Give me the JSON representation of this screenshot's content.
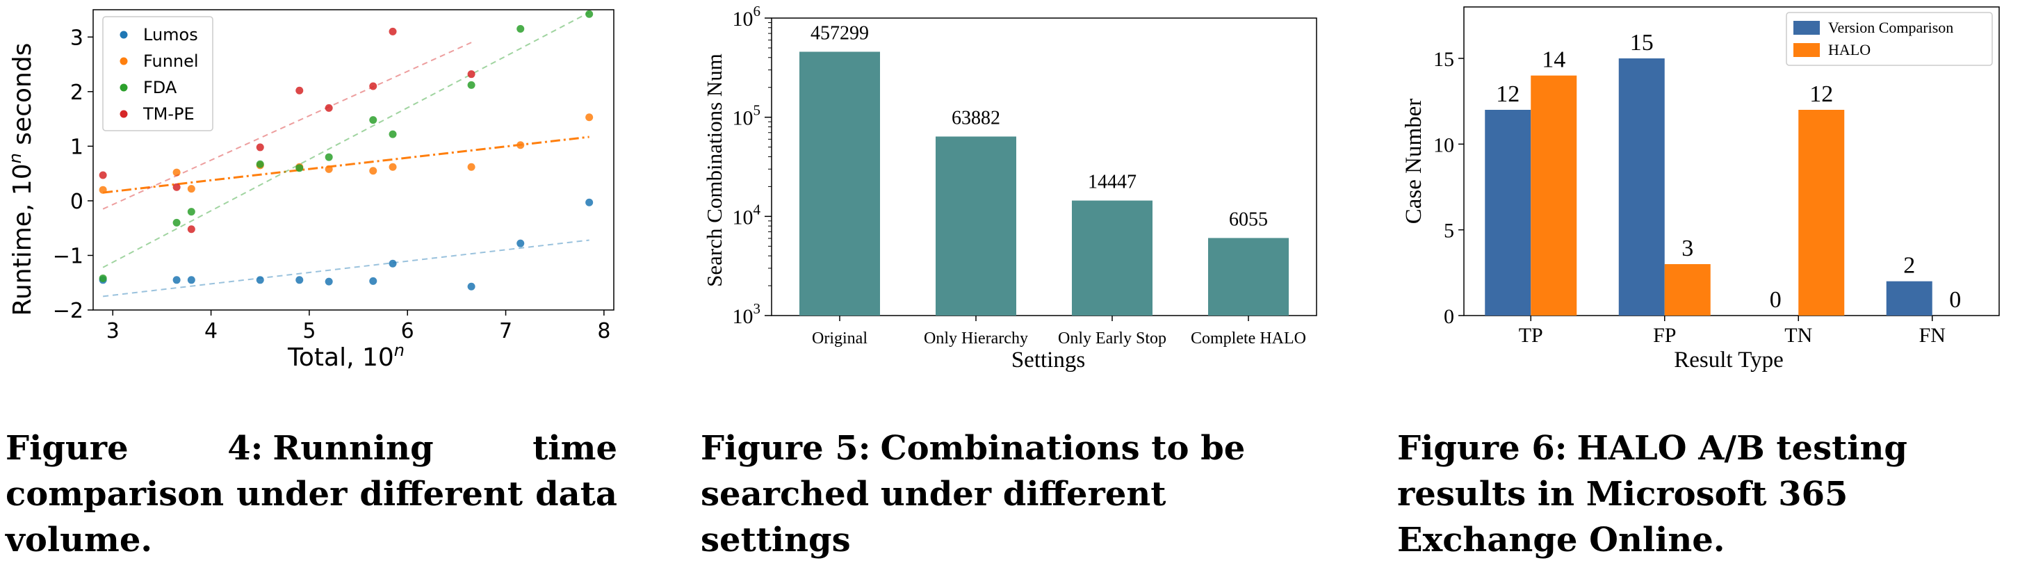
{
  "figures": [
    {
      "label": "Figure 4:",
      "text": "Running time comparison under different data volume."
    },
    {
      "label": "Figure 5:",
      "text": "Combinations to be searched under different settings"
    },
    {
      "label": "Figure 6:",
      "text": "HALO A/B testing results in Microsoft 365 Exchange Online."
    }
  ],
  "chart_data": [
    {
      "type": "scatter",
      "title": "",
      "xlabel": "Total, 10^n",
      "ylabel": "Runtime, 10^n seconds",
      "xlim": [
        2.8,
        8.1
      ],
      "ylim": [
        -2.0,
        3.5
      ],
      "xticks": [
        3,
        4,
        5,
        6,
        7,
        8
      ],
      "yticks": [
        -2,
        -1,
        0,
        1,
        2,
        3
      ],
      "grid": false,
      "legend": "top-left",
      "series": [
        {
          "name": "Lumos",
          "color": "#1f77b4",
          "x": [
            2.9,
            3.65,
            3.8,
            4.5,
            4.9,
            5.2,
            5.65,
            5.85,
            6.65,
            7.15,
            7.85
          ],
          "y": [
            -1.45,
            -1.45,
            -1.45,
            -1.45,
            -1.45,
            -1.48,
            -1.47,
            -1.15,
            -1.57,
            -0.78,
            -0.03
          ],
          "trend": [
            [
              2.9,
              -1.75
            ],
            [
              7.85,
              -0.72
            ]
          ]
        },
        {
          "name": "Funnel",
          "color": "#ff7f0e",
          "x": [
            2.9,
            3.65,
            3.8,
            4.5,
            4.9,
            5.2,
            5.65,
            5.85,
            6.65,
            7.15,
            7.85
          ],
          "y": [
            0.2,
            0.52,
            0.22,
            0.65,
            0.62,
            0.58,
            0.55,
            0.62,
            0.62,
            1.02,
            1.53
          ],
          "trend": [
            [
              2.9,
              0.15
            ],
            [
              7.85,
              1.17
            ]
          ]
        },
        {
          "name": "FDA",
          "color": "#2ca02c",
          "x": [
            2.9,
            3.65,
            3.8,
            4.5,
            4.9,
            5.2,
            5.65,
            5.85,
            6.65,
            7.15,
            7.85
          ],
          "y": [
            -1.42,
            -0.4,
            -0.2,
            0.67,
            0.6,
            0.8,
            1.48,
            1.22,
            2.12,
            3.15,
            3.42
          ],
          "trend": [
            [
              2.9,
              -1.22
            ],
            [
              7.85,
              3.45
            ]
          ]
        },
        {
          "name": "TM-PE",
          "color": "#d62728",
          "x": [
            2.9,
            3.65,
            3.8,
            4.5,
            4.9,
            5.2,
            5.65,
            5.85,
            6.65
          ],
          "y": [
            0.47,
            0.25,
            -0.52,
            0.98,
            2.02,
            1.7,
            2.1,
            3.1,
            2.32
          ],
          "trend": [
            [
              2.9,
              -0.15
            ],
            [
              6.65,
              2.9
            ]
          ]
        }
      ]
    },
    {
      "type": "bar",
      "title": "",
      "xlabel": "Settings",
      "ylabel": "Search Combinations Num",
      "yscale": "log",
      "ylim": [
        1000,
        1000000
      ],
      "ytick_labels": [
        {
          "value": 1000,
          "base": "10",
          "exp": "3"
        },
        {
          "value": 10000,
          "base": "10",
          "exp": "4"
        },
        {
          "value": 100000,
          "base": "10",
          "exp": "5"
        },
        {
          "value": 1000000,
          "base": "10",
          "exp": "6"
        }
      ],
      "categories": [
        "Original",
        "Only Hierarchy",
        "Only Early Stop",
        "Complete HALO"
      ],
      "values": [
        457299,
        63882,
        14447,
        6055
      ],
      "color": "#4f8f8f"
    },
    {
      "type": "bar",
      "title": "",
      "xlabel": "Result Type",
      "ylabel": "Case Number",
      "ylim": [
        0,
        18
      ],
      "yticks": [
        0,
        5,
        10,
        15
      ],
      "legend": "top-right",
      "categories": [
        "TP",
        "FP",
        "TN",
        "FN"
      ],
      "series": [
        {
          "name": "Version Comparison",
          "color": "#3b6ba5",
          "values": [
            12,
            15,
            0,
            2
          ]
        },
        {
          "name": "HALO",
          "color": "#ff7f0e",
          "values": [
            14,
            3,
            12,
            0
          ]
        }
      ]
    }
  ]
}
